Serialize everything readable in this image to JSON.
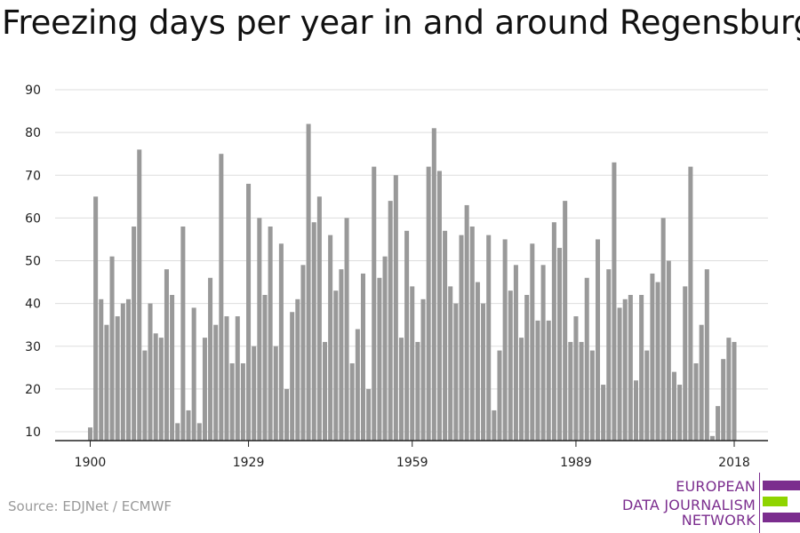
{
  "source": "Source: EDJNet / ECMWF",
  "logo": {
    "lines": [
      "EUROPEAN",
      "DATA JOURNALISM",
      "NETWORK"
    ],
    "colors": {
      "purple": "#7b2d8e",
      "green": "#8fd400"
    }
  },
  "colors": {
    "bar": "#999999",
    "grid": "#dddddd",
    "axis": "#222222"
  },
  "chart_data": {
    "type": "bar",
    "title": "Freezing days per year in and around Regensburg",
    "xlabel": "",
    "ylabel": "",
    "ylim": [
      8,
      90
    ],
    "yticks": [
      10,
      20,
      30,
      40,
      50,
      60,
      70,
      80,
      90
    ],
    "xticks": [
      "1900",
      "1929",
      "1959",
      "1989",
      "2018"
    ],
    "grid": true,
    "legend": "none",
    "x_start": 1900,
    "x_end": 2018,
    "values": [
      11,
      65,
      41,
      35,
      51,
      37,
      40,
      41,
      58,
      76,
      29,
      40,
      33,
      32,
      48,
      42,
      12,
      58,
      15,
      39,
      12,
      32,
      46,
      35,
      75,
      37,
      26,
      37,
      26,
      68,
      30,
      60,
      42,
      58,
      30,
      54,
      20,
      38,
      41,
      49,
      82,
      59,
      65,
      31,
      56,
      43,
      48,
      60,
      26,
      34,
      47,
      20,
      72,
      46,
      51,
      64,
      70,
      32,
      57,
      44,
      31,
      41,
      72,
      81,
      71,
      57,
      44,
      40,
      56,
      63,
      58,
      45,
      40,
      56,
      15,
      29,
      55,
      43,
      49,
      32,
      42,
      54,
      36,
      49,
      36,
      59,
      53,
      64,
      31,
      37,
      31,
      46,
      29,
      55,
      21,
      48,
      73,
      39,
      41,
      42,
      22,
      42,
      29,
      47,
      45,
      60,
      50,
      24,
      21,
      44,
      72,
      26,
      35,
      48,
      9,
      16,
      27,
      32,
      31
    ]
  }
}
